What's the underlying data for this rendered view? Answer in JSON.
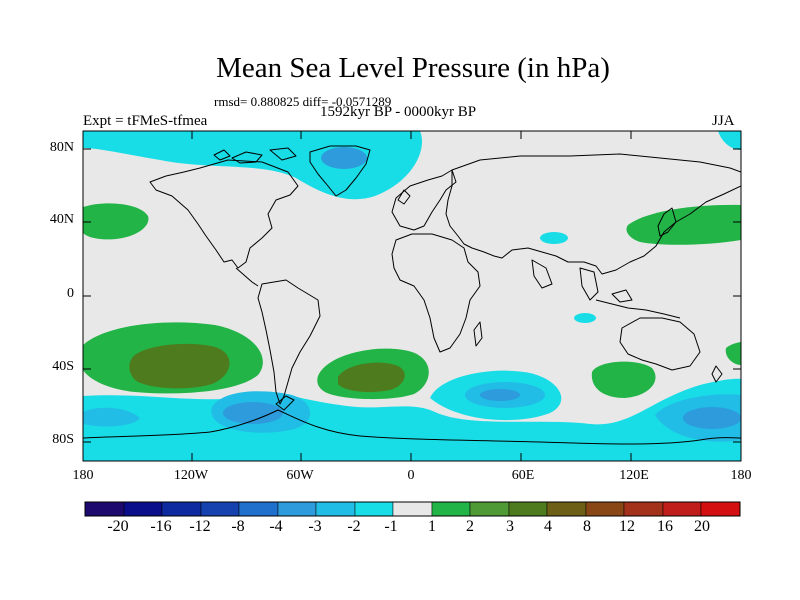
{
  "title": "Mean Sea Level Pressure (in hPa)",
  "stats": "rmsd= 0.880825  diff= -0.0571289",
  "period": "1592kyr BP - 0000kyr BP",
  "experiment": "Expt = tFMeS-tfmea",
  "season": "JJA",
  "y_axis": {
    "ticks": [
      {
        "label": "80N",
        "lat": 80
      },
      {
        "label": "40N",
        "lat": 40
      },
      {
        "label": "0",
        "lat": 0
      },
      {
        "label": "40S",
        "lat": -40
      },
      {
        "label": "80S",
        "lat": -80
      }
    ]
  },
  "x_axis": {
    "ticks": [
      {
        "label": "180",
        "lon": -180
      },
      {
        "label": "120W",
        "lon": -120
      },
      {
        "label": "60W",
        "lon": -60
      },
      {
        "label": "0",
        "lon": 0
      },
      {
        "label": "60E",
        "lon": 60
      },
      {
        "label": "120E",
        "lon": 120
      },
      {
        "label": "180",
        "lon": 180
      }
    ]
  },
  "colorbar": {
    "levels": [
      "-20",
      "-16",
      "-12",
      "-8",
      "-4",
      "-3",
      "-2",
      "-1",
      "1",
      "2",
      "3",
      "4",
      "8",
      "12",
      "16",
      "20"
    ],
    "colors": [
      "#1e0a6e",
      "#0b0e8a",
      "#0d2aa0",
      "#1642b0",
      "#1f6fcc",
      "#2d9bdc",
      "#22bde6",
      "#19dde6",
      "#e8e8e8",
      "#22b446",
      "#4f9a34",
      "#4e7b1d",
      "#6d6016",
      "#8a4716",
      "#a4311a",
      "#c01e1a",
      "#d40f0f"
    ]
  },
  "colors": {
    "land_background": "#e8e8e8",
    "neg_1_2": "#19dde6",
    "neg_2_3": "#22bde6",
    "neg_3_4": "#2d9bdc",
    "neg_4_8": "#1f6fcc",
    "pos_1_2": "#22b446",
    "pos_2_3": "#4f9a34",
    "pos_3_4": "#4e7b1d",
    "coast": "#000000"
  }
}
